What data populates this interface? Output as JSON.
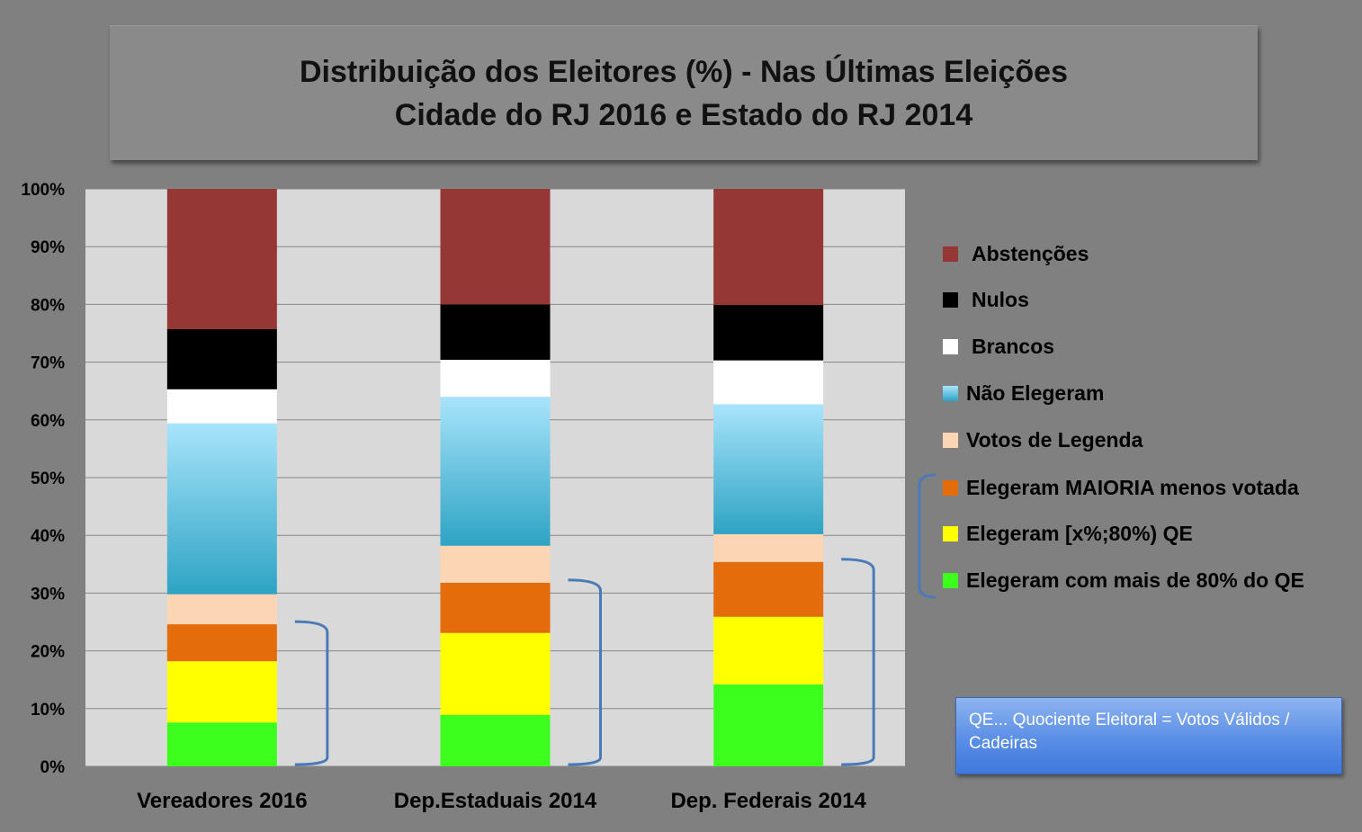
{
  "title": {
    "line1": "Distribuição dos Eleitores (%) - Nas Últimas Eleições",
    "line2": "Cidade do RJ 2016 e Estado do RJ 2014"
  },
  "note": "QE... Quociente Eleitoral = Votos Válidos / Cadeiras",
  "chart_data": {
    "type": "bar",
    "stacked": true,
    "categories": [
      "Vereadores 2016",
      "Dep.Estaduais 2014",
      "Dep. Federais 2014"
    ],
    "y_ticks": [
      "0%",
      "10%",
      "20%",
      "30%",
      "40%",
      "50%",
      "60%",
      "70%",
      "80%",
      "90%",
      "100%"
    ],
    "ylim": [
      0,
      100
    ],
    "grid": true,
    "legend_position": "right",
    "series": [
      {
        "name": "Elegeram com mais de 80% do QE",
        "color": "#3dff1e",
        "values": [
          7.6,
          8.9,
          14.2
        ]
      },
      {
        "name": "Elegeram [x%;80%) QE",
        "color": "#ffff00",
        "values": [
          10.6,
          14.2,
          11.7
        ]
      },
      {
        "name": "Elegeram MAIORIA menos votada",
        "color": "#e46c0a",
        "values": [
          6.4,
          8.7,
          9.5
        ]
      },
      {
        "name": "Votos de Legenda",
        "color": "#fcd5b5",
        "values": [
          5.2,
          6.4,
          4.8
        ]
      },
      {
        "name": "Não Elegeram",
        "color": "#5bc0e0",
        "values": [
          29.6,
          25.8,
          22.5
        ]
      },
      {
        "name": "Brancos",
        "color": "#ffffff",
        "values": [
          5.9,
          6.4,
          7.6
        ]
      },
      {
        "name": "Nulos",
        "color": "#000000",
        "values": [
          10.4,
          9.6,
          9.6
        ]
      },
      {
        "name": "Abstenções",
        "color": "#953735",
        "values": [
          24.3,
          20.0,
          20.1
        ]
      }
    ],
    "legend_order": [
      "Abstenções",
      "Nulos",
      "Brancos",
      "Não Elegeram",
      "Votos de Legenda",
      "Elegeram MAIORIA menos votada",
      "Elegeram [x%;80%) QE",
      "Elegeram com mais de 80% do QE"
    ]
  }
}
